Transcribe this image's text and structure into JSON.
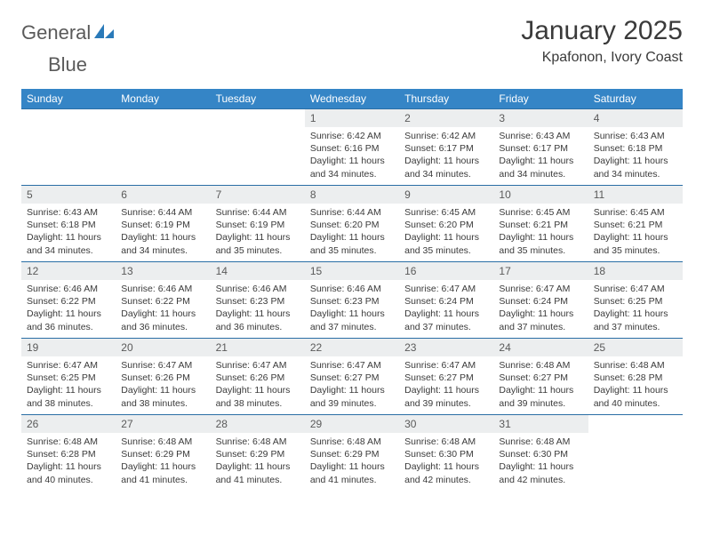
{
  "brand": {
    "word1": "General",
    "word2": "Blue"
  },
  "title": "January 2025",
  "location": "Kpafonon, Ivory Coast",
  "colors": {
    "header_bg": "#3585c6",
    "header_text": "#ffffff",
    "row_divider": "#2a6ea5",
    "daynum_bg": "#eceeef",
    "text": "#3a3a3a",
    "brand_gray": "#5a5a5a",
    "brand_blue": "#2a7ab9"
  },
  "weekdays": [
    "Sunday",
    "Monday",
    "Tuesday",
    "Wednesday",
    "Thursday",
    "Friday",
    "Saturday"
  ],
  "layout": {
    "first_weekday_index": 3,
    "days_in_month": 31
  },
  "days": [
    {
      "n": 1,
      "sunrise": "6:42 AM",
      "sunset": "6:16 PM",
      "daylight": "11 hours and 34 minutes."
    },
    {
      "n": 2,
      "sunrise": "6:42 AM",
      "sunset": "6:17 PM",
      "daylight": "11 hours and 34 minutes."
    },
    {
      "n": 3,
      "sunrise": "6:43 AM",
      "sunset": "6:17 PM",
      "daylight": "11 hours and 34 minutes."
    },
    {
      "n": 4,
      "sunrise": "6:43 AM",
      "sunset": "6:18 PM",
      "daylight": "11 hours and 34 minutes."
    },
    {
      "n": 5,
      "sunrise": "6:43 AM",
      "sunset": "6:18 PM",
      "daylight": "11 hours and 34 minutes."
    },
    {
      "n": 6,
      "sunrise": "6:44 AM",
      "sunset": "6:19 PM",
      "daylight": "11 hours and 34 minutes."
    },
    {
      "n": 7,
      "sunrise": "6:44 AM",
      "sunset": "6:19 PM",
      "daylight": "11 hours and 35 minutes."
    },
    {
      "n": 8,
      "sunrise": "6:44 AM",
      "sunset": "6:20 PM",
      "daylight": "11 hours and 35 minutes."
    },
    {
      "n": 9,
      "sunrise": "6:45 AM",
      "sunset": "6:20 PM",
      "daylight": "11 hours and 35 minutes."
    },
    {
      "n": 10,
      "sunrise": "6:45 AM",
      "sunset": "6:21 PM",
      "daylight": "11 hours and 35 minutes."
    },
    {
      "n": 11,
      "sunrise": "6:45 AM",
      "sunset": "6:21 PM",
      "daylight": "11 hours and 35 minutes."
    },
    {
      "n": 12,
      "sunrise": "6:46 AM",
      "sunset": "6:22 PM",
      "daylight": "11 hours and 36 minutes."
    },
    {
      "n": 13,
      "sunrise": "6:46 AM",
      "sunset": "6:22 PM",
      "daylight": "11 hours and 36 minutes."
    },
    {
      "n": 14,
      "sunrise": "6:46 AM",
      "sunset": "6:23 PM",
      "daylight": "11 hours and 36 minutes."
    },
    {
      "n": 15,
      "sunrise": "6:46 AM",
      "sunset": "6:23 PM",
      "daylight": "11 hours and 37 minutes."
    },
    {
      "n": 16,
      "sunrise": "6:47 AM",
      "sunset": "6:24 PM",
      "daylight": "11 hours and 37 minutes."
    },
    {
      "n": 17,
      "sunrise": "6:47 AM",
      "sunset": "6:24 PM",
      "daylight": "11 hours and 37 minutes."
    },
    {
      "n": 18,
      "sunrise": "6:47 AM",
      "sunset": "6:25 PM",
      "daylight": "11 hours and 37 minutes."
    },
    {
      "n": 19,
      "sunrise": "6:47 AM",
      "sunset": "6:25 PM",
      "daylight": "11 hours and 38 minutes."
    },
    {
      "n": 20,
      "sunrise": "6:47 AM",
      "sunset": "6:26 PM",
      "daylight": "11 hours and 38 minutes."
    },
    {
      "n": 21,
      "sunrise": "6:47 AM",
      "sunset": "6:26 PM",
      "daylight": "11 hours and 38 minutes."
    },
    {
      "n": 22,
      "sunrise": "6:47 AM",
      "sunset": "6:27 PM",
      "daylight": "11 hours and 39 minutes."
    },
    {
      "n": 23,
      "sunrise": "6:47 AM",
      "sunset": "6:27 PM",
      "daylight": "11 hours and 39 minutes."
    },
    {
      "n": 24,
      "sunrise": "6:48 AM",
      "sunset": "6:27 PM",
      "daylight": "11 hours and 39 minutes."
    },
    {
      "n": 25,
      "sunrise": "6:48 AM",
      "sunset": "6:28 PM",
      "daylight": "11 hours and 40 minutes."
    },
    {
      "n": 26,
      "sunrise": "6:48 AM",
      "sunset": "6:28 PM",
      "daylight": "11 hours and 40 minutes."
    },
    {
      "n": 27,
      "sunrise": "6:48 AM",
      "sunset": "6:29 PM",
      "daylight": "11 hours and 41 minutes."
    },
    {
      "n": 28,
      "sunrise": "6:48 AM",
      "sunset": "6:29 PM",
      "daylight": "11 hours and 41 minutes."
    },
    {
      "n": 29,
      "sunrise": "6:48 AM",
      "sunset": "6:29 PM",
      "daylight": "11 hours and 41 minutes."
    },
    {
      "n": 30,
      "sunrise": "6:48 AM",
      "sunset": "6:30 PM",
      "daylight": "11 hours and 42 minutes."
    },
    {
      "n": 31,
      "sunrise": "6:48 AM",
      "sunset": "6:30 PM",
      "daylight": "11 hours and 42 minutes."
    }
  ],
  "labels": {
    "sunrise": "Sunrise:",
    "sunset": "Sunset:",
    "daylight": "Daylight:"
  }
}
